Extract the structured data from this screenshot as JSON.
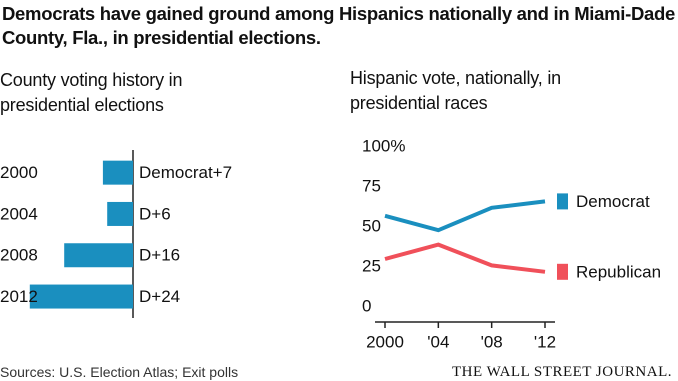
{
  "title": "Democrats have gained ground among Hispanics nationally and in Miami-Dade County, Fla., in presidential elections.",
  "chart_data": [
    {
      "type": "hbar",
      "title": "County voting history in presidential elections",
      "categories": [
        "2000",
        "2004",
        "2008",
        "2012"
      ],
      "values": [
        7,
        6,
        16,
        24
      ],
      "value_labels": [
        "Democrat+7",
        "D+6",
        "D+16",
        "D+24"
      ],
      "color": "#1a8fbf"
    },
    {
      "type": "line",
      "title": "Hispanic vote, nationally, in presidential races",
      "categories": [
        "2000",
        "'04",
        "'08",
        "'12"
      ],
      "series": [
        {
          "name": "Democrat",
          "color": "#1a8fbf",
          "values": [
            62,
            53,
            67,
            71
          ]
        },
        {
          "name": "Republican",
          "color": "#f0505a",
          "values": [
            35,
            44,
            31,
            27
          ]
        }
      ],
      "ylim": [
        0,
        100
      ],
      "yticks": [
        0,
        25,
        50,
        75,
        {
          "value": 100,
          "label": "100%"
        }
      ]
    }
  ],
  "source": "Sources: U.S. Election Atlas; Exit polls",
  "credit": "THE WALL STREET JOURNAL."
}
